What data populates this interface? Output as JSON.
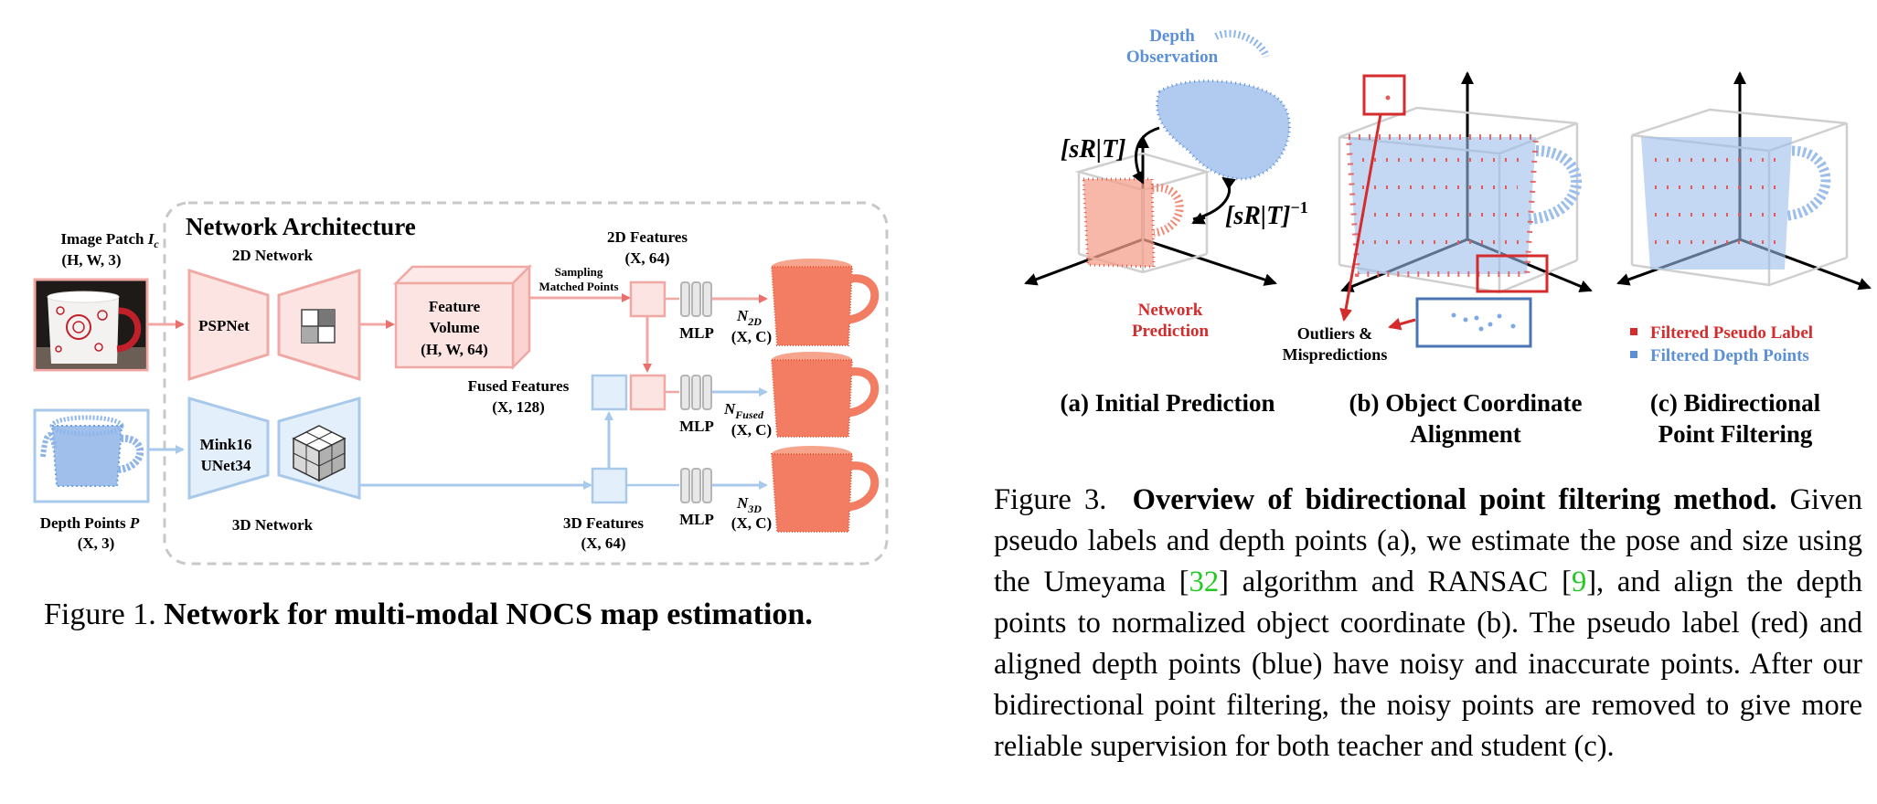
{
  "colors": {
    "red_branch": "#e9706c",
    "red_fill": "#fce4e2",
    "red_stroke": "#f0a8a4",
    "blue_fill": "#e3effa",
    "blue_stroke": "#a9c9ea",
    "prediction_red": "#d42c2c",
    "observation_blue": "#5b8fd6",
    "citation_green": "#22c922"
  },
  "figure1": {
    "panel_title": "Network Architecture",
    "image_patch_label": "Image Patch",
    "image_patch_symbol": "I",
    "image_patch_sub": "c",
    "image_patch_shape": "(H, W, 3)",
    "depth_points_label": "Depth Points",
    "depth_points_symbol": "P",
    "depth_points_shape": "(X, 3)",
    "net2d_label": "2D Network",
    "net3d_label": "3D Network",
    "pspnet_label": "PSPNet",
    "mink_label_1": "Mink16",
    "mink_label_2": "UNet34",
    "feature_volume_1": "Feature",
    "feature_volume_2": "Volume",
    "feature_volume_3": "(H, W, 64)",
    "sampling_1": "Sampling",
    "sampling_2": "Matched Points",
    "features_2d_1": "2D Features",
    "features_2d_2": "(X, 64)",
    "fused_features_1": "Fused Features",
    "fused_features_2": "(X, 128)",
    "features_3d_1": "3D Features",
    "features_3d_2": "(X, 64)",
    "mlp": "MLP",
    "n_symbol": "N",
    "n2d_sub": "2D",
    "nfused_sub": "Fused",
    "n3d_sub": "3D",
    "output_shape": "(X, C)",
    "caption_prefix": "Figure 1.",
    "caption_bold": "Network for multi-modal NOCS map estimation."
  },
  "figure3": {
    "depth_obs_1": "Depth",
    "depth_obs_2": "Observation",
    "net_pred_1": "Network",
    "net_pred_2": "Prediction",
    "srt": "[sR|T]",
    "srt_inv": "[sR|T]",
    "srt_inv_exp": "−1",
    "outliers_1": "Outliers &",
    "outliers_2": "Mispredictions",
    "legend_red": "Filtered Pseudo Label",
    "legend_blue": "Filtered Depth Points",
    "sub_a": "(a) Initial Prediction",
    "sub_b_1": "(b) Object Coordinate",
    "sub_b_2": "Alignment",
    "sub_c_1": "(c) Bidirectional",
    "sub_c_2": "Point Filtering",
    "caption_prefix": "Figure 3.",
    "caption_bold": "Overview of bidirectional point filtering method.",
    "caption_t1": "Given pseudo labels and depth points (a), we estimate the pose and size using the Umeyama [",
    "ref_32": "32",
    "caption_t2": "] algorithm and RANSAC [",
    "ref_9": "9",
    "caption_t3": "], and align the depth points to normalized object coordinate (b). The pseudo label (red) and aligned depth points (blue) have noisy and inaccurate points. After our bidirectional point filtering, the noisy points are removed to give more reliable supervision for both teacher and student (c)."
  }
}
